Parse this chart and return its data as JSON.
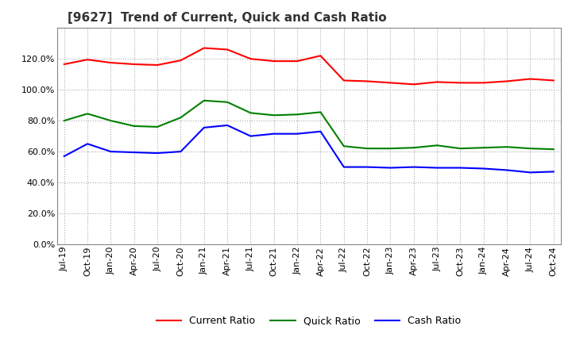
{
  "title": "[9627]  Trend of Current, Quick and Cash Ratio",
  "ylim": [
    0.0,
    1.4
  ],
  "yticks": [
    0.0,
    0.2,
    0.4,
    0.6,
    0.8,
    1.0,
    1.2
  ],
  "x_labels": [
    "Jul-19",
    "Oct-19",
    "Jan-20",
    "Apr-20",
    "Jul-20",
    "Oct-20",
    "Jan-21",
    "Apr-21",
    "Jul-21",
    "Oct-21",
    "Jan-22",
    "Apr-22",
    "Jul-22",
    "Oct-22",
    "Jan-23",
    "Apr-23",
    "Jul-23",
    "Oct-23",
    "Jan-24",
    "Apr-24",
    "Jul-24",
    "Oct-24"
  ],
  "current_ratio": [
    1.165,
    1.195,
    1.175,
    1.165,
    1.16,
    1.19,
    1.27,
    1.26,
    1.2,
    1.185,
    1.185,
    1.22,
    1.06,
    1.055,
    1.045,
    1.035,
    1.05,
    1.045,
    1.045,
    1.055,
    1.07,
    1.06
  ],
  "quick_ratio": [
    0.8,
    0.845,
    0.8,
    0.765,
    0.76,
    0.82,
    0.93,
    0.92,
    0.85,
    0.835,
    0.84,
    0.855,
    0.635,
    0.62,
    0.62,
    0.625,
    0.64,
    0.62,
    0.625,
    0.63,
    0.62,
    0.615
  ],
  "cash_ratio": [
    0.57,
    0.65,
    0.6,
    0.595,
    0.59,
    0.6,
    0.755,
    0.77,
    0.7,
    0.715,
    0.715,
    0.73,
    0.5,
    0.5,
    0.495,
    0.5,
    0.495,
    0.495,
    0.49,
    0.48,
    0.465,
    0.47
  ],
  "current_color": "#FF0000",
  "quick_color": "#008000",
  "cash_color": "#0000FF",
  "background_color": "#ffffff",
  "grid_color": "#aaaaaa",
  "title_fontsize": 11,
  "legend_fontsize": 9,
  "tick_fontsize": 8
}
